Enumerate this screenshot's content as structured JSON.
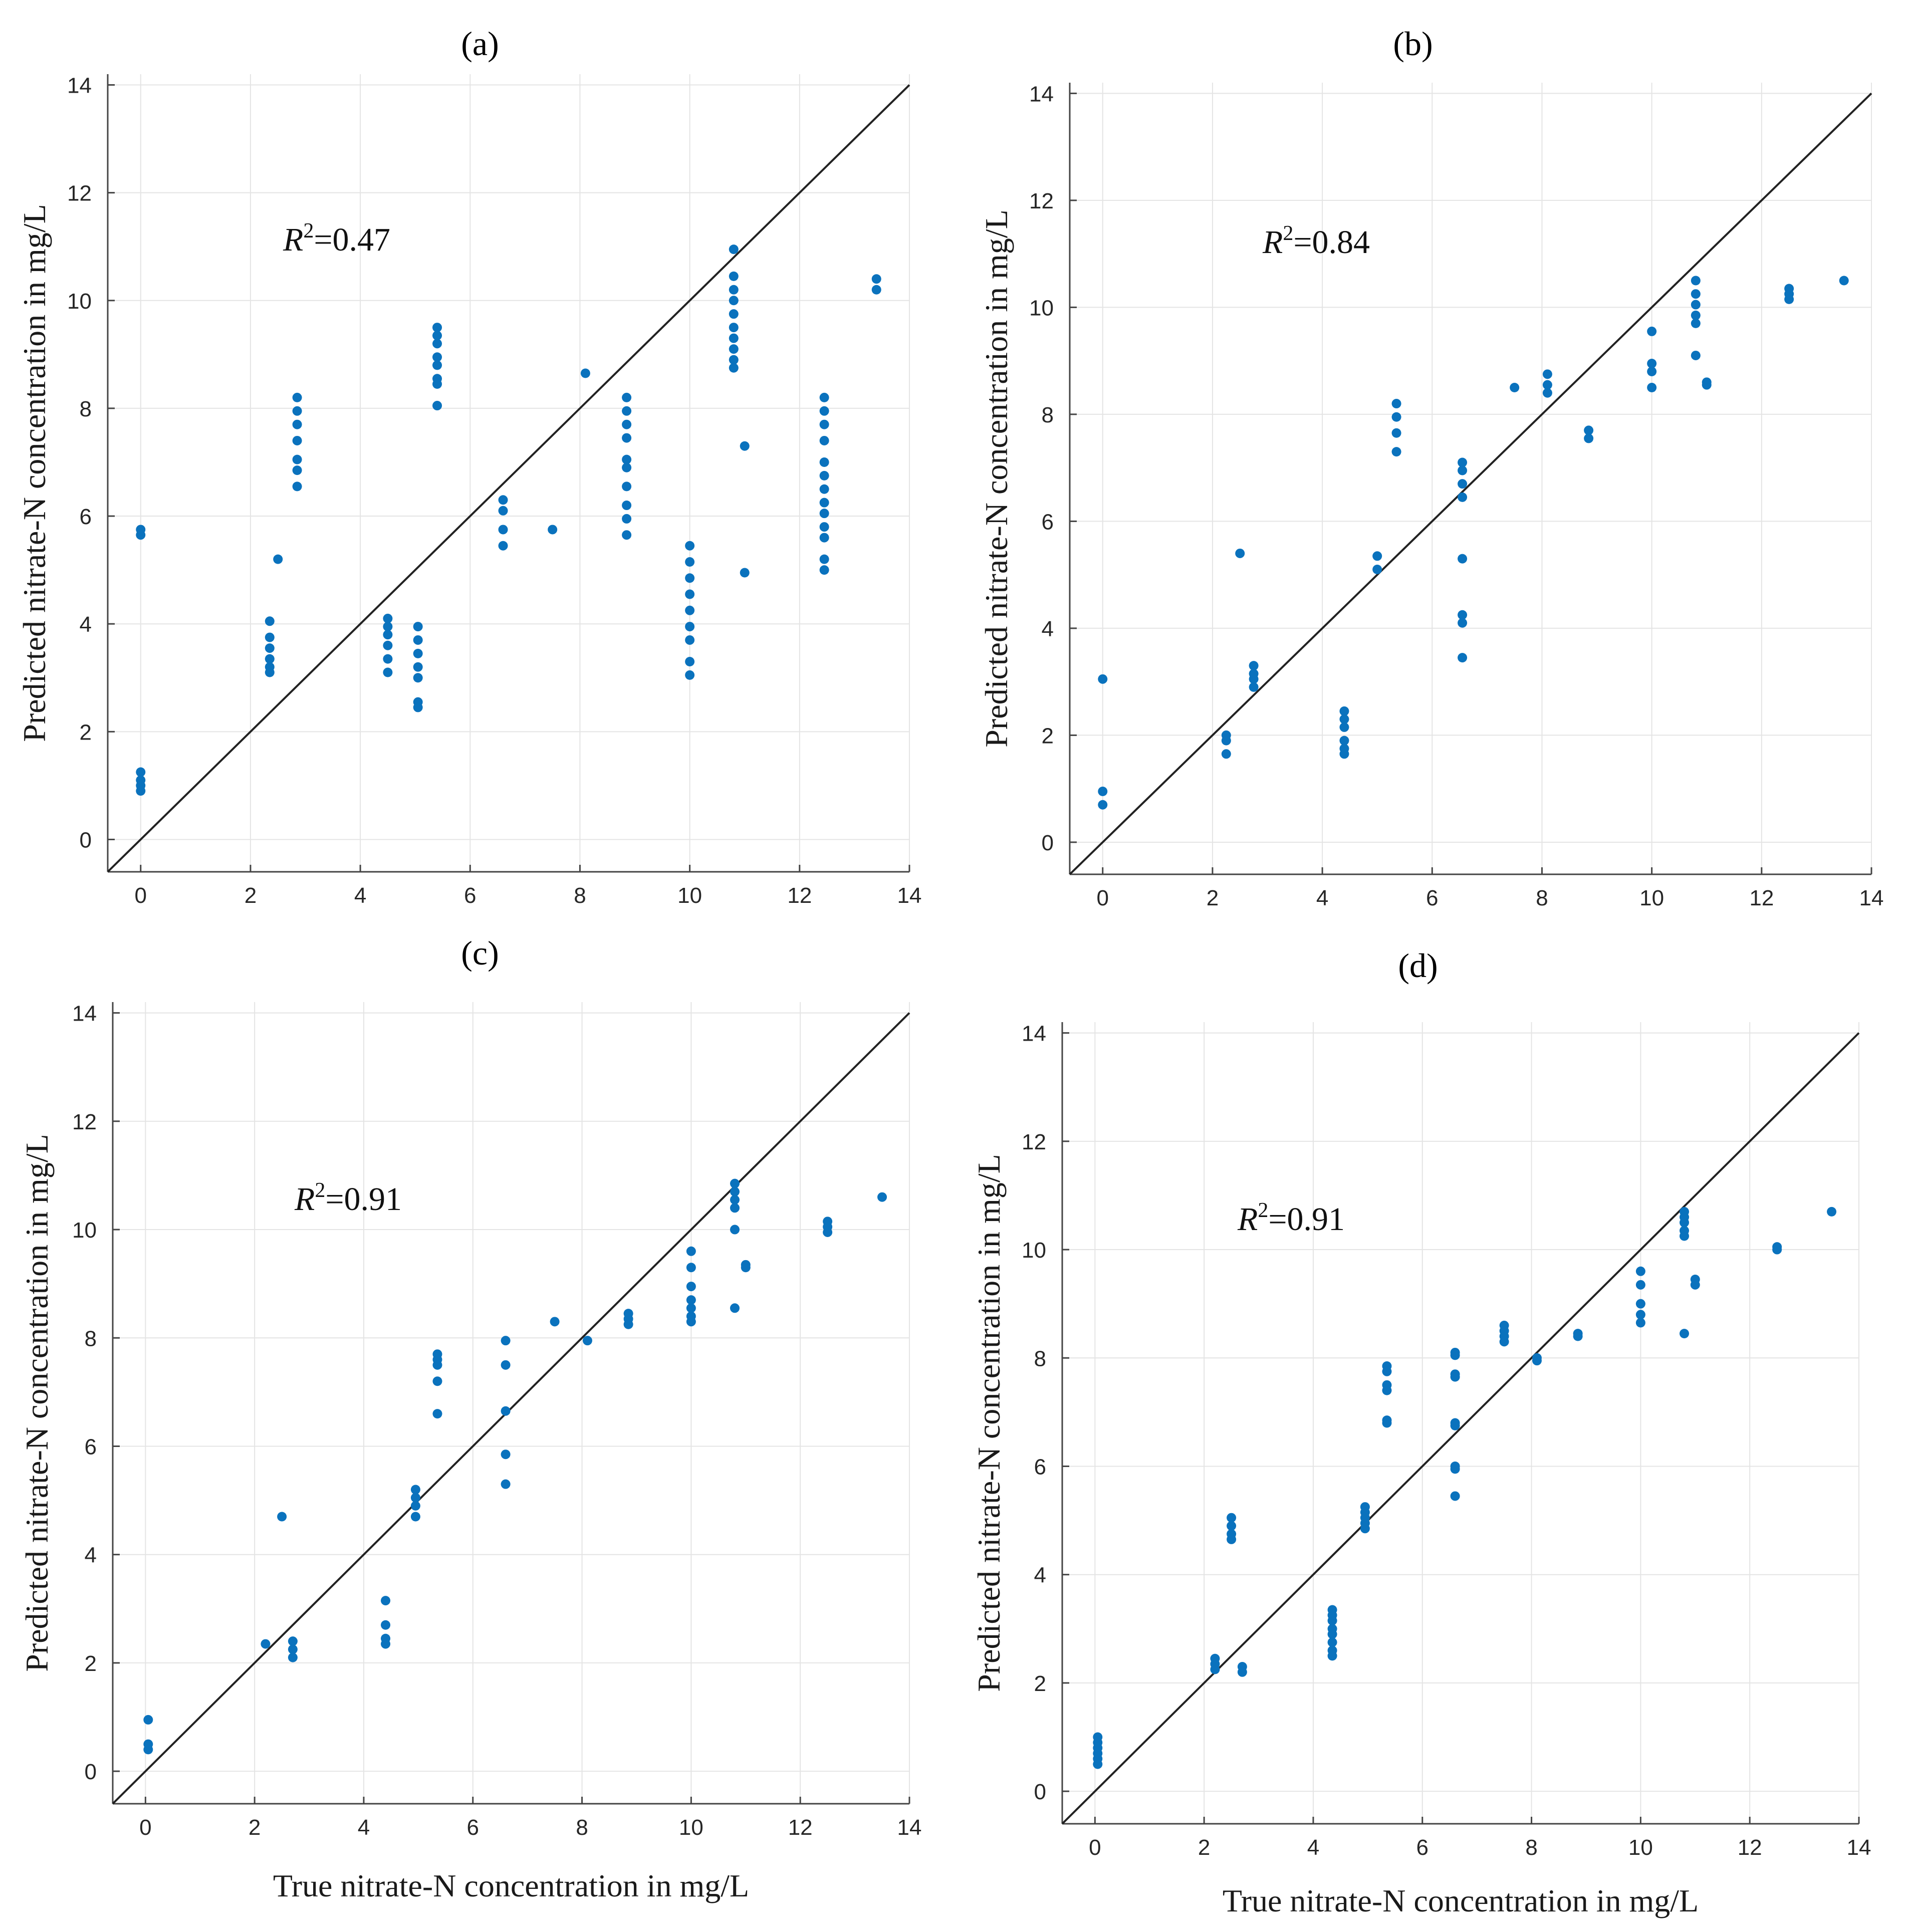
{
  "chart_data": [
    {
      "type": "scatter",
      "title": "(a)",
      "annotation": {
        "italic": "R",
        "sup": "2",
        "rest": "=0.47"
      },
      "xlabel": "",
      "ylabel": "Predicted nitrate-N concentration in mg/L",
      "xlim": [
        -0.6,
        14
      ],
      "ylim": [
        -0.6,
        14.2
      ],
      "xticks": [
        "0",
        "2",
        "4",
        "6",
        "8",
        "10",
        "12",
        "14"
      ],
      "yticks": [
        "0",
        "2",
        "4",
        "6",
        "8",
        "10",
        "12",
        "14"
      ],
      "grid": true,
      "reference_line": "y = x",
      "points": [
        [
          0,
          5.75
        ],
        [
          0,
          5.65
        ],
        [
          0,
          1.25
        ],
        [
          0,
          1.1
        ],
        [
          0,
          1.0
        ],
        [
          0,
          0.9
        ],
        [
          2.35,
          4.05
        ],
        [
          2.35,
          3.75
        ],
        [
          2.35,
          3.55
        ],
        [
          2.35,
          3.35
        ],
        [
          2.35,
          3.2
        ],
        [
          2.35,
          3.1
        ],
        [
          2.5,
          5.2
        ],
        [
          2.85,
          8.2
        ],
        [
          2.85,
          7.95
        ],
        [
          2.85,
          7.7
        ],
        [
          2.85,
          7.4
        ],
        [
          2.85,
          7.05
        ],
        [
          2.85,
          6.85
        ],
        [
          2.85,
          6.55
        ],
        [
          4.5,
          4.1
        ],
        [
          4.5,
          3.95
        ],
        [
          4.5,
          3.8
        ],
        [
          4.5,
          3.6
        ],
        [
          4.5,
          3.35
        ],
        [
          4.5,
          3.1
        ],
        [
          5.05,
          3.95
        ],
        [
          5.05,
          3.7
        ],
        [
          5.05,
          3.45
        ],
        [
          5.05,
          3.2
        ],
        [
          5.05,
          3.0
        ],
        [
          5.05,
          2.55
        ],
        [
          5.05,
          2.45
        ],
        [
          5.4,
          9.5
        ],
        [
          5.4,
          9.35
        ],
        [
          5.4,
          9.2
        ],
        [
          5.4,
          8.95
        ],
        [
          5.4,
          8.8
        ],
        [
          5.4,
          8.55
        ],
        [
          5.4,
          8.45
        ],
        [
          5.4,
          8.05
        ],
        [
          6.6,
          6.3
        ],
        [
          6.6,
          6.1
        ],
        [
          6.6,
          5.75
        ],
        [
          6.6,
          5.45
        ],
        [
          7.5,
          5.75
        ],
        [
          8.1,
          8.65
        ],
        [
          8.85,
          8.2
        ],
        [
          8.85,
          7.95
        ],
        [
          8.85,
          7.7
        ],
        [
          8.85,
          7.45
        ],
        [
          8.85,
          7.05
        ],
        [
          8.85,
          6.9
        ],
        [
          8.85,
          6.55
        ],
        [
          8.85,
          6.2
        ],
        [
          8.85,
          5.95
        ],
        [
          8.85,
          5.65
        ],
        [
          10.0,
          5.45
        ],
        [
          10.0,
          5.15
        ],
        [
          10.0,
          4.85
        ],
        [
          10.0,
          4.55
        ],
        [
          10.0,
          4.25
        ],
        [
          10.0,
          3.95
        ],
        [
          10.0,
          3.7
        ],
        [
          10.0,
          3.3
        ],
        [
          10.0,
          3.05
        ],
        [
          10.8,
          10.95
        ],
        [
          10.8,
          10.45
        ],
        [
          10.8,
          10.2
        ],
        [
          10.8,
          10.0
        ],
        [
          10.8,
          9.75
        ],
        [
          10.8,
          9.5
        ],
        [
          10.8,
          9.3
        ],
        [
          10.8,
          9.1
        ],
        [
          10.8,
          8.9
        ],
        [
          10.8,
          8.75
        ],
        [
          11.0,
          7.3
        ],
        [
          11.0,
          4.95
        ],
        [
          12.45,
          8.2
        ],
        [
          12.45,
          7.95
        ],
        [
          12.45,
          7.7
        ],
        [
          12.45,
          7.4
        ],
        [
          12.45,
          7.0
        ],
        [
          12.45,
          6.75
        ],
        [
          12.45,
          6.5
        ],
        [
          12.45,
          6.25
        ],
        [
          12.45,
          6.05
        ],
        [
          12.45,
          5.8
        ],
        [
          12.45,
          5.6
        ],
        [
          12.45,
          5.2
        ],
        [
          12.45,
          5.0
        ],
        [
          13.4,
          10.4
        ],
        [
          13.4,
          10.2
        ]
      ]
    },
    {
      "type": "scatter",
      "title": "(b)",
      "annotation": {
        "italic": "R",
        "sup": "2",
        "rest": "=0.84"
      },
      "xlabel": "",
      "ylabel": "Predicted nitrate-N concentration in mg/L",
      "xlim": [
        -0.6,
        14
      ],
      "ylim": [
        -0.6,
        14.2
      ],
      "xticks": [
        "0",
        "2",
        "4",
        "6",
        "8",
        "10",
        "12",
        "14"
      ],
      "yticks": [
        "0",
        "2",
        "4",
        "6",
        "8",
        "10",
        "12",
        "14"
      ],
      "grid": true,
      "reference_line": "y = x",
      "points": [
        [
          0,
          3.05
        ],
        [
          0,
          0.95
        ],
        [
          0,
          0.7
        ],
        [
          2.25,
          2.0
        ],
        [
          2.25,
          1.9
        ],
        [
          2.25,
          1.65
        ],
        [
          2.5,
          5.4
        ],
        [
          2.75,
          3.3
        ],
        [
          2.75,
          3.15
        ],
        [
          2.75,
          3.05
        ],
        [
          2.75,
          2.9
        ],
        [
          4.4,
          2.45
        ],
        [
          4.4,
          2.3
        ],
        [
          4.4,
          2.15
        ],
        [
          4.4,
          1.9
        ],
        [
          4.4,
          1.75
        ],
        [
          4.4,
          1.65
        ],
        [
          5.0,
          5.35
        ],
        [
          5.0,
          5.1
        ],
        [
          5.35,
          8.2
        ],
        [
          5.35,
          7.95
        ],
        [
          5.35,
          7.65
        ],
        [
          5.35,
          7.3
        ],
        [
          6.55,
          7.1
        ],
        [
          6.55,
          6.95
        ],
        [
          6.55,
          6.7
        ],
        [
          6.55,
          6.45
        ],
        [
          6.55,
          5.3
        ],
        [
          6.55,
          4.25
        ],
        [
          6.55,
          4.1
        ],
        [
          6.55,
          3.45
        ],
        [
          7.5,
          8.5
        ],
        [
          8.1,
          8.75
        ],
        [
          8.1,
          8.55
        ],
        [
          8.1,
          8.4
        ],
        [
          8.85,
          7.7
        ],
        [
          8.85,
          7.55
        ],
        [
          10.0,
          9.55
        ],
        [
          10.0,
          8.95
        ],
        [
          10.0,
          8.8
        ],
        [
          10.0,
          8.5
        ],
        [
          10.8,
          10.5
        ],
        [
          10.8,
          10.25
        ],
        [
          10.8,
          10.05
        ],
        [
          10.8,
          9.85
        ],
        [
          10.8,
          9.7
        ],
        [
          10.8,
          9.1
        ],
        [
          11.0,
          8.6
        ],
        [
          11.0,
          8.55
        ],
        [
          12.5,
          10.35
        ],
        [
          12.5,
          10.25
        ],
        [
          12.5,
          10.15
        ],
        [
          13.5,
          10.5
        ]
      ]
    },
    {
      "type": "scatter",
      "title": "(c)",
      "annotation": {
        "italic": "R",
        "sup": "2",
        "rest": "=0.91"
      },
      "xlabel": "True nitrate-N concentration in mg/L",
      "ylabel": "Predicted nitrate-N concentration in mg/L",
      "xlim": [
        -0.6,
        14
      ],
      "ylim": [
        -0.6,
        14.2
      ],
      "xticks": [
        "0",
        "2",
        "4",
        "6",
        "8",
        "10",
        "12",
        "14"
      ],
      "yticks": [
        "0",
        "2",
        "4",
        "6",
        "8",
        "10",
        "12",
        "14"
      ],
      "grid": true,
      "reference_line": "y = x",
      "points": [
        [
          0.05,
          0.95
        ],
        [
          0.05,
          0.5
        ],
        [
          0.05,
          0.4
        ],
        [
          2.2,
          2.35
        ],
        [
          2.5,
          4.7
        ],
        [
          2.7,
          2.4
        ],
        [
          2.7,
          2.25
        ],
        [
          2.7,
          2.1
        ],
        [
          4.4,
          3.15
        ],
        [
          4.4,
          2.7
        ],
        [
          4.4,
          2.45
        ],
        [
          4.4,
          2.35
        ],
        [
          4.95,
          5.2
        ],
        [
          4.95,
          5.05
        ],
        [
          4.95,
          4.9
        ],
        [
          4.95,
          4.7
        ],
        [
          5.35,
          7.7
        ],
        [
          5.35,
          7.6
        ],
        [
          5.35,
          7.5
        ],
        [
          5.35,
          7.2
        ],
        [
          5.35,
          6.6
        ],
        [
          6.6,
          7.95
        ],
        [
          6.6,
          7.5
        ],
        [
          6.6,
          6.65
        ],
        [
          6.6,
          5.85
        ],
        [
          6.6,
          5.3
        ],
        [
          7.5,
          8.3
        ],
        [
          8.1,
          7.95
        ],
        [
          8.85,
          8.45
        ],
        [
          8.85,
          8.35
        ],
        [
          8.85,
          8.25
        ],
        [
          10.0,
          9.6
        ],
        [
          10.0,
          9.3
        ],
        [
          10.0,
          8.95
        ],
        [
          10.0,
          8.7
        ],
        [
          10.0,
          8.55
        ],
        [
          10.0,
          8.4
        ],
        [
          10.0,
          8.3
        ],
        [
          10.8,
          10.85
        ],
        [
          10.8,
          10.7
        ],
        [
          10.8,
          10.55
        ],
        [
          10.8,
          10.4
        ],
        [
          10.8,
          10.0
        ],
        [
          10.8,
          8.55
        ],
        [
          11.0,
          9.35
        ],
        [
          11.0,
          9.3
        ],
        [
          12.5,
          10.15
        ],
        [
          12.5,
          10.05
        ],
        [
          12.5,
          9.95
        ],
        [
          13.5,
          10.6
        ]
      ]
    },
    {
      "type": "scatter",
      "title": "(d)",
      "annotation": {
        "italic": "R",
        "sup": "2",
        "rest": "=0.91"
      },
      "xlabel": "True nitrate-N concentration in mg/L",
      "ylabel": "Predicted nitrate-N concentration in mg/L",
      "xlim": [
        -0.6,
        14
      ],
      "ylim": [
        -0.6,
        14.2
      ],
      "xticks": [
        "0",
        "2",
        "4",
        "6",
        "8",
        "10",
        "12",
        "14"
      ],
      "yticks": [
        "0",
        "2",
        "4",
        "6",
        "8",
        "10",
        "12",
        "14"
      ],
      "grid": true,
      "reference_line": "y = x",
      "points": [
        [
          0.05,
          1.0
        ],
        [
          0.05,
          0.9
        ],
        [
          0.05,
          0.8
        ],
        [
          0.05,
          0.7
        ],
        [
          0.05,
          0.6
        ],
        [
          0.05,
          0.5
        ],
        [
          2.2,
          2.45
        ],
        [
          2.2,
          2.35
        ],
        [
          2.2,
          2.25
        ],
        [
          2.5,
          5.05
        ],
        [
          2.5,
          4.9
        ],
        [
          2.5,
          4.75
        ],
        [
          2.5,
          4.65
        ],
        [
          2.7,
          2.3
        ],
        [
          2.7,
          2.2
        ],
        [
          4.35,
          3.35
        ],
        [
          4.35,
          3.25
        ],
        [
          4.35,
          3.15
        ],
        [
          4.35,
          3.0
        ],
        [
          4.35,
          2.9
        ],
        [
          4.35,
          2.75
        ],
        [
          4.35,
          2.6
        ],
        [
          4.35,
          2.5
        ],
        [
          4.95,
          5.25
        ],
        [
          4.95,
          5.15
        ],
        [
          4.95,
          5.05
        ],
        [
          4.95,
          4.95
        ],
        [
          4.95,
          4.85
        ],
        [
          5.35,
          7.85
        ],
        [
          5.35,
          7.75
        ],
        [
          5.35,
          7.5
        ],
        [
          5.35,
          7.4
        ],
        [
          5.35,
          6.85
        ],
        [
          5.35,
          6.8
        ],
        [
          6.6,
          8.1
        ],
        [
          6.6,
          8.05
        ],
        [
          6.6,
          7.7
        ],
        [
          6.6,
          7.65
        ],
        [
          6.6,
          6.8
        ],
        [
          6.6,
          6.75
        ],
        [
          6.6,
          6.0
        ],
        [
          6.6,
          5.95
        ],
        [
          6.6,
          5.45
        ],
        [
          7.5,
          8.6
        ],
        [
          7.5,
          8.5
        ],
        [
          7.5,
          8.4
        ],
        [
          7.5,
          8.3
        ],
        [
          8.1,
          8.0
        ],
        [
          8.1,
          7.95
        ],
        [
          8.85,
          8.45
        ],
        [
          8.85,
          8.4
        ],
        [
          10.0,
          9.6
        ],
        [
          10.0,
          9.35
        ],
        [
          10.0,
          9.0
        ],
        [
          10.0,
          8.8
        ],
        [
          10.0,
          8.65
        ],
        [
          10.8,
          10.7
        ],
        [
          10.8,
          10.6
        ],
        [
          10.8,
          10.5
        ],
        [
          10.8,
          10.35
        ],
        [
          10.8,
          10.25
        ],
        [
          10.8,
          8.45
        ],
        [
          11.0,
          9.45
        ],
        [
          11.0,
          9.35
        ],
        [
          12.5,
          10.05
        ],
        [
          12.5,
          10.0
        ],
        [
          13.5,
          10.7
        ]
      ]
    }
  ]
}
